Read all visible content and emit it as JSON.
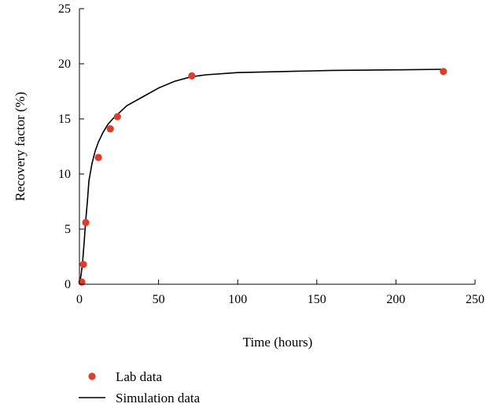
{
  "chart_data": {
    "type": "scatter",
    "xlabel": "Time (hours)",
    "ylabel": "Recovery factor (%)",
    "xlim": [
      0,
      250
    ],
    "ylim": [
      0,
      25
    ],
    "xticks": [
      0,
      50,
      100,
      150,
      200,
      250
    ],
    "yticks": [
      0,
      5,
      10,
      15,
      20,
      25
    ],
    "x_tick_labels": [
      "0",
      "50",
      "100",
      "150",
      "200",
      "250"
    ],
    "y_tick_labels": [
      "0",
      "5",
      "10",
      "15",
      "20",
      "25"
    ],
    "grid": false,
    "legend_position": "bottom-left",
    "series": [
      {
        "name": "Lab data",
        "kind": "scatter",
        "color": "#e03c2c",
        "x": [
          1.5,
          2.5,
          4,
          12,
          19.5,
          24,
          71,
          230
        ],
        "y": [
          0.2,
          1.8,
          5.6,
          11.5,
          14.1,
          15.2,
          18.9,
          19.3
        ]
      },
      {
        "name": "Simulation data",
        "kind": "line",
        "color": "#000000",
        "x": [
          0,
          1,
          2,
          3,
          4,
          5,
          6,
          8,
          10,
          12,
          15,
          18,
          21,
          24,
          27,
          30,
          40,
          50,
          60,
          70,
          80,
          100,
          130,
          160,
          200,
          230
        ],
        "y": [
          0,
          0.8,
          2.0,
          3.8,
          5.8,
          7.5,
          9.4,
          11.0,
          12.1,
          12.9,
          13.8,
          14.5,
          15.0,
          15.4,
          15.8,
          16.2,
          17.0,
          17.8,
          18.4,
          18.8,
          19.0,
          19.2,
          19.3,
          19.4,
          19.45,
          19.5
        ]
      }
    ]
  }
}
